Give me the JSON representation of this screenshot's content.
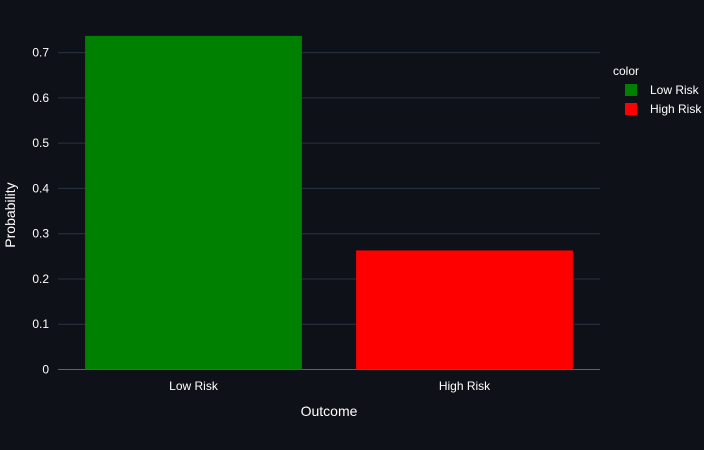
{
  "chart_data": {
    "type": "bar",
    "categories": [
      "Low Risk",
      "High Risk"
    ],
    "values": [
      0.737,
      0.263
    ],
    "colors": [
      "#008000",
      "#ff0000"
    ],
    "xlabel": "Outcome",
    "ylabel": "Probability",
    "ylim": [
      0,
      0.75
    ],
    "yticks": [
      0,
      0.1,
      0.2,
      0.3,
      0.4,
      0.5,
      0.6,
      0.7
    ],
    "ytick_labels": [
      "0",
      "0.1",
      "0.2",
      "0.3",
      "0.4",
      "0.5",
      "0.6",
      "0.7"
    ],
    "grid": true,
    "legend": {
      "title": "color",
      "placement": "top-right",
      "entries": [
        {
          "label": "Low Risk",
          "color": "#008000"
        },
        {
          "label": "High Risk",
          "color": "#ff0000"
        }
      ]
    },
    "background": "#0e1117",
    "gridline_color": "#283442"
  }
}
